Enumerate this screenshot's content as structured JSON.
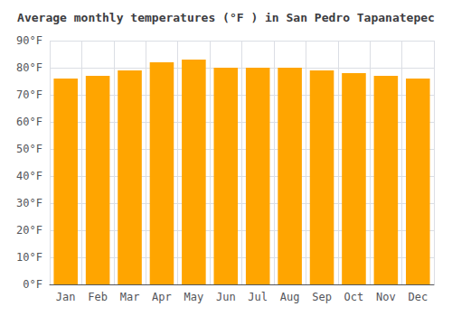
{
  "chart_data": {
    "type": "bar",
    "title": "Average monthly temperatures (°F ) in San Pedro Tapanatepec",
    "categories": [
      "Jan",
      "Feb",
      "Mar",
      "Apr",
      "May",
      "Jun",
      "Jul",
      "Aug",
      "Sep",
      "Oct",
      "Nov",
      "Dec"
    ],
    "values": [
      76,
      77,
      79,
      82,
      83,
      80,
      80,
      80,
      79,
      78,
      77,
      76
    ],
    "color": "#FFA500",
    "ylim": [
      0,
      90
    ],
    "yticks": [
      {
        "value": 0,
        "label": "0°F"
      },
      {
        "value": 10,
        "label": "10°F"
      },
      {
        "value": 20,
        "label": "20°F"
      },
      {
        "value": 30,
        "label": "30°F"
      },
      {
        "value": 40,
        "label": "40°F"
      },
      {
        "value": 50,
        "label": "50°F"
      },
      {
        "value": 60,
        "label": "60°F"
      },
      {
        "value": 70,
        "label": "70°F"
      },
      {
        "value": 80,
        "label": "80°F"
      },
      {
        "value": 90,
        "label": "90°F"
      }
    ],
    "grid": true
  }
}
